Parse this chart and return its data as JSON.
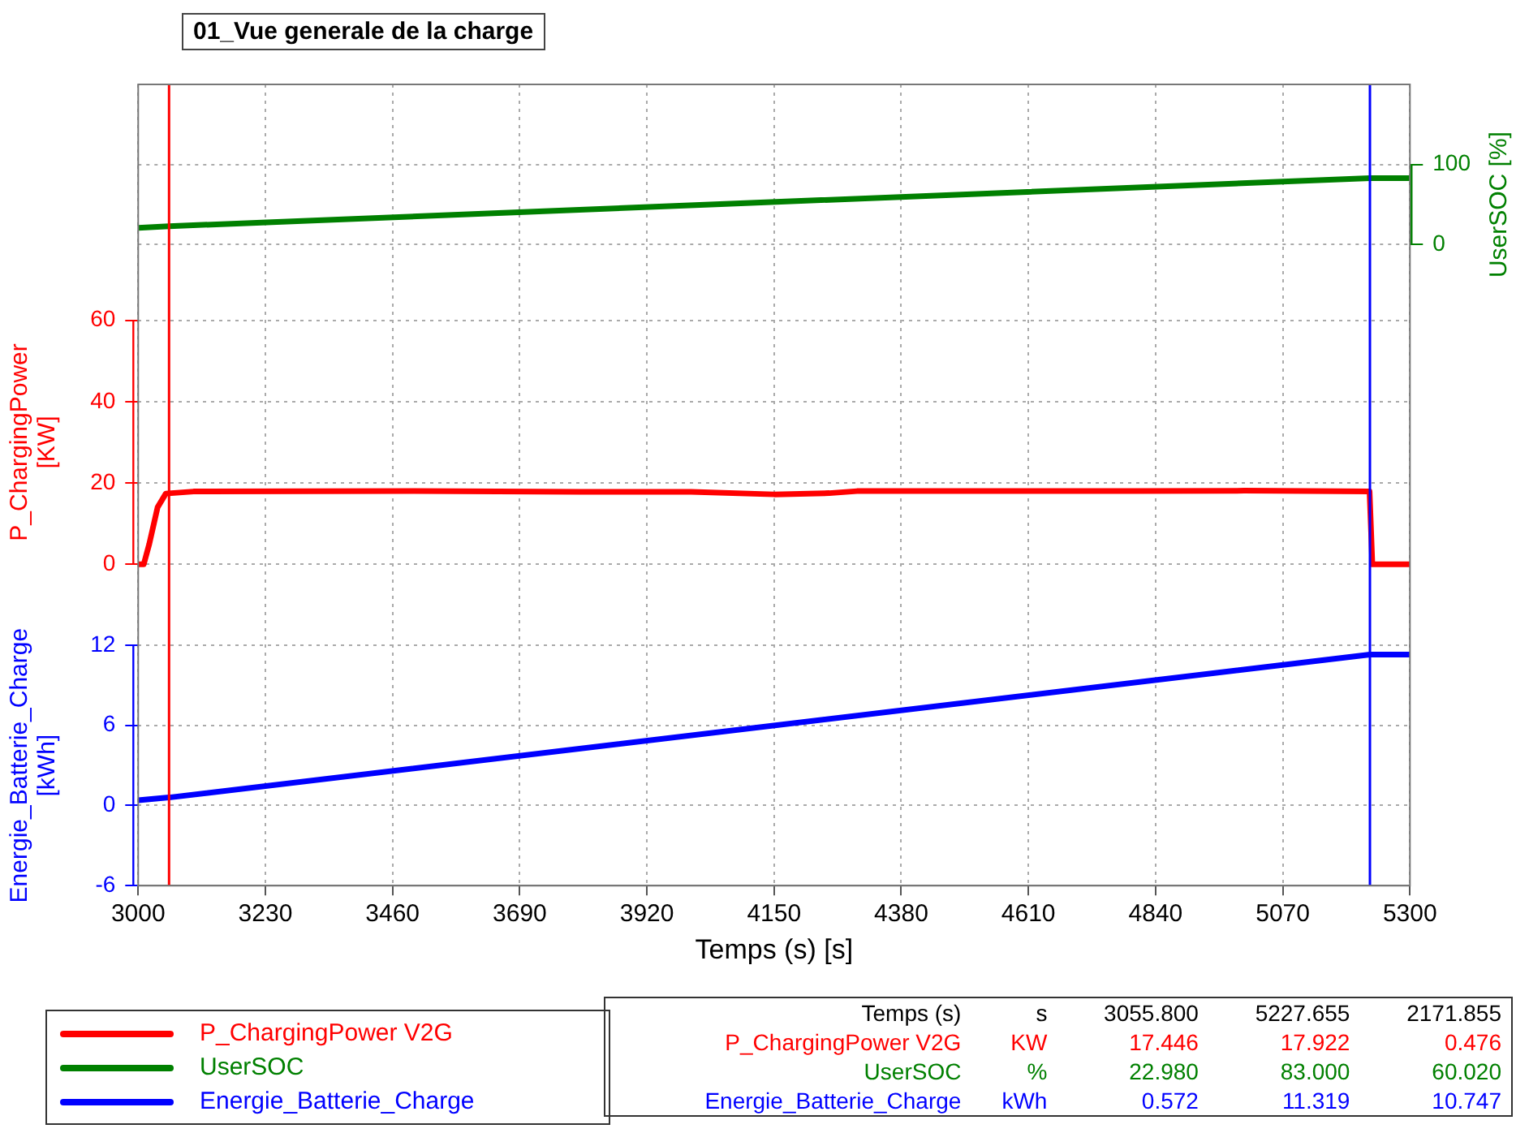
{
  "chart_data": {
    "type": "line",
    "title": "01_Vue generale de la charge",
    "xlabel": "Temps (s) [s]",
    "ylabel": "P_ChargingPower\n[KW]",
    "y2label": "UserSOC [%]",
    "y3label": "Energie_Batterie_Charge\n[kWh]",
    "xlim": [
      3000,
      5300
    ],
    "xticks": [
      3000,
      3230,
      3460,
      3690,
      3920,
      4150,
      4380,
      4610,
      4840,
      5070,
      5300
    ],
    "ylim": [
      -79,
      118
    ],
    "yticks": [
      0,
      20,
      40,
      60
    ],
    "y2lim": [
      -800,
      200
    ],
    "y2ticks": [
      0,
      100
    ],
    "y3lim": [
      -6,
      54
    ],
    "y3ticks": [
      -6,
      0,
      6,
      12
    ],
    "series": [
      {
        "name": "P_ChargingPower V2G",
        "color": "#ff0000",
        "x": [
          3000,
          3010,
          3020,
          3035,
          3050,
          3100,
          3500,
          3800,
          4000,
          4150,
          4250,
          4300,
          4800,
          5000,
          5227,
          5232,
          5300
        ],
        "values": [
          0,
          0,
          5,
          14,
          17.4,
          17.9,
          18,
          17.8,
          17.8,
          17.2,
          17.5,
          18,
          18,
          18.1,
          17.9,
          0,
          0
        ]
      },
      {
        "name": "UserSOC",
        "color": "#008000",
        "axis": "y2",
        "x": [
          3000,
          3055.8,
          5227.655,
          5300
        ],
        "values": [
          21,
          23,
          83,
          83
        ]
      },
      {
        "name": "Energie_Batterie_Charge",
        "color": "#0000ff",
        "axis": "y3",
        "x": [
          3000,
          3055.8,
          5227.655,
          5250,
          5300
        ],
        "values": [
          0.4,
          0.6,
          11.3,
          11.3,
          11.3
        ]
      }
    ],
    "ref_lines": [
      {
        "axis": "x",
        "value": 3055.8,
        "color": "#ff0000"
      },
      {
        "axis": "x",
        "value": 5227.655,
        "color": "#0000ff"
      }
    ],
    "grid": true,
    "legend": "bottom left",
    "marker": "none",
    "line_style": "solid",
    "annotations": [
      "Temps (s)",
      "s",
      "3055.800",
      "5227.655",
      "2171.855",
      "P_ChargingPower  V2G",
      "KW",
      "17.446",
      "17.922",
      "0.476",
      "UserSOC",
      "%",
      "22.980",
      "83.000",
      "60.020",
      "Energie_Batterie_Charge",
      "kWh",
      "0.572",
      "11.319",
      "10.747"
    ]
  }
}
